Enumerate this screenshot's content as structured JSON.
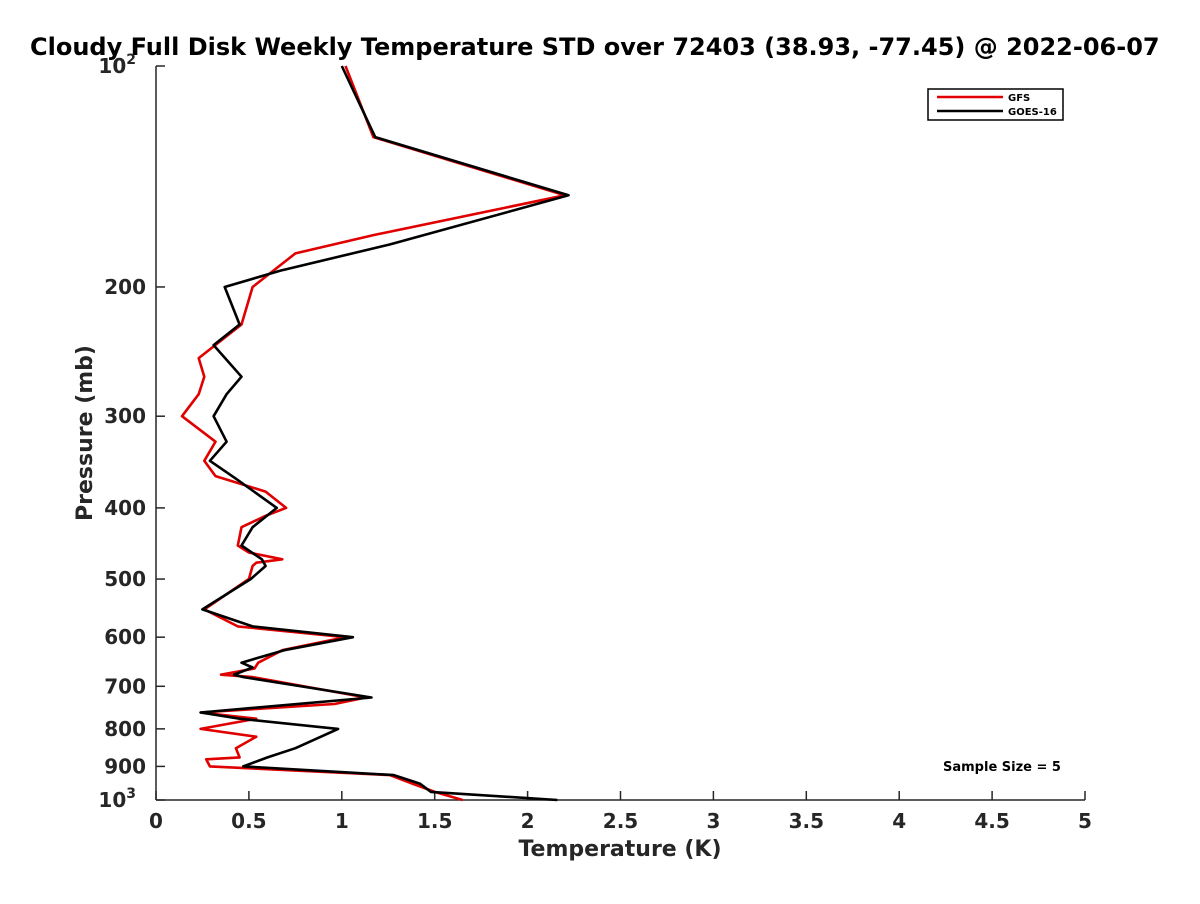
{
  "chart_data": {
    "type": "line",
    "title": "Cloudy Full Disk Weekly Temperature STD over 72403 (38.93, -77.45) @ 2022-06-07",
    "xlabel": "Temperature (K)",
    "ylabel": "Pressure (mb)",
    "xlim": [
      0,
      5
    ],
    "ylim": [
      100,
      1000
    ],
    "y_scale": "log",
    "y_reversed": true,
    "x_ticks": [
      "0",
      "0.5",
      "1",
      "1.5",
      "2",
      "2.5",
      "3",
      "3.5",
      "4",
      "4.5",
      "5"
    ],
    "y_ticks": [
      {
        "value": 100,
        "label": "10",
        "sup": "2"
      },
      {
        "value": 200,
        "label": "200"
      },
      {
        "value": 300,
        "label": "300"
      },
      {
        "value": 400,
        "label": "400"
      },
      {
        "value": 500,
        "label": "500"
      },
      {
        "value": 600,
        "label": "600"
      },
      {
        "value": 700,
        "label": "700"
      },
      {
        "value": 800,
        "label": "800"
      },
      {
        "value": 900,
        "label": "900"
      },
      {
        "value": 1000,
        "label": "10",
        "sup": "3"
      }
    ],
    "grid": false,
    "legend_position": "top-right",
    "annotation": "Sample Size = 5",
    "series": [
      {
        "name": "GFS",
        "color": "#e00000",
        "points": [
          [
            1.02,
            100
          ],
          [
            1.17,
            125
          ],
          [
            2.2,
            150
          ],
          [
            1.17,
            170
          ],
          [
            0.75,
            180
          ],
          [
            0.52,
            200
          ],
          [
            0.46,
            225
          ],
          [
            0.23,
            250
          ],
          [
            0.26,
            265
          ],
          [
            0.23,
            280
          ],
          [
            0.14,
            300
          ],
          [
            0.32,
            325
          ],
          [
            0.26,
            345
          ],
          [
            0.32,
            362
          ],
          [
            0.59,
            380
          ],
          [
            0.7,
            400
          ],
          [
            0.59,
            410
          ],
          [
            0.46,
            425
          ],
          [
            0.44,
            450
          ],
          [
            0.5,
            460
          ],
          [
            0.68,
            470
          ],
          [
            0.54,
            475
          ],
          [
            0.52,
            480
          ],
          [
            0.5,
            500
          ],
          [
            0.26,
            550
          ],
          [
            0.44,
            580
          ],
          [
            1.02,
            600
          ],
          [
            0.68,
            625
          ],
          [
            0.55,
            650
          ],
          [
            0.53,
            662
          ],
          [
            0.35,
            675
          ],
          [
            0.52,
            680
          ],
          [
            1.13,
            725
          ],
          [
            0.96,
            740
          ],
          [
            0.24,
            760
          ],
          [
            0.54,
            775
          ],
          [
            0.24,
            800
          ],
          [
            0.54,
            820
          ],
          [
            0.43,
            850
          ],
          [
            0.45,
            875
          ],
          [
            0.27,
            880
          ],
          [
            0.29,
            900
          ],
          [
            1.26,
            925
          ],
          [
            1.38,
            950
          ],
          [
            1.5,
            975
          ],
          [
            1.65,
            1000
          ]
        ]
      },
      {
        "name": "GOES-16",
        "color": "#000000",
        "points": [
          [
            1.0,
            100
          ],
          [
            1.18,
            125
          ],
          [
            2.22,
            150
          ],
          [
            1.26,
            175
          ],
          [
            0.67,
            190
          ],
          [
            0.37,
            200
          ],
          [
            0.45,
            225
          ],
          [
            0.31,
            240
          ],
          [
            0.46,
            265
          ],
          [
            0.38,
            280
          ],
          [
            0.31,
            300
          ],
          [
            0.38,
            325
          ],
          [
            0.29,
            345
          ],
          [
            0.43,
            365
          ],
          [
            0.65,
            400
          ],
          [
            0.52,
            425
          ],
          [
            0.46,
            450
          ],
          [
            0.57,
            470
          ],
          [
            0.59,
            480
          ],
          [
            0.51,
            500
          ],
          [
            0.25,
            550
          ],
          [
            0.52,
            580
          ],
          [
            1.06,
            600
          ],
          [
            0.69,
            625
          ],
          [
            0.46,
            650
          ],
          [
            0.52,
            660
          ],
          [
            0.42,
            675
          ],
          [
            0.47,
            680
          ],
          [
            1.16,
            725
          ],
          [
            0.24,
            760
          ],
          [
            0.45,
            775
          ],
          [
            0.98,
            800
          ],
          [
            0.75,
            850
          ],
          [
            0.6,
            875
          ],
          [
            0.47,
            900
          ],
          [
            1.28,
            925
          ],
          [
            1.42,
            950
          ],
          [
            1.48,
            975
          ],
          [
            2.16,
            1000
          ]
        ]
      }
    ]
  }
}
